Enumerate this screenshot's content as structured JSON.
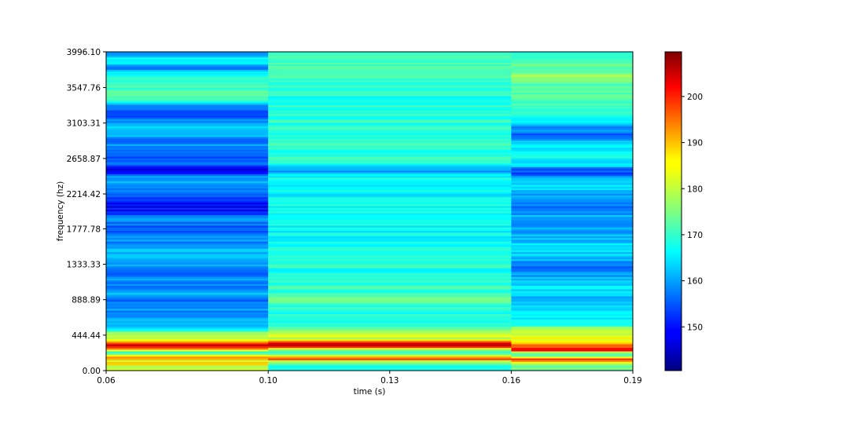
{
  "chart_data": {
    "type": "heatmap",
    "title": "",
    "xlabel": "time (s)",
    "ylabel": "frequency (hz)",
    "colormap": "jet",
    "x_ticks": [
      "0.06",
      "0.10",
      "0.13",
      "0.16",
      "0.19"
    ],
    "x_tick_values": [
      0.06,
      0.1,
      0.13,
      0.16,
      0.19
    ],
    "xlim": [
      0.06,
      0.19
    ],
    "y_ticks": [
      "0.00",
      "444.44",
      "888.89",
      "1333.33",
      "1777.78",
      "2214.42",
      "2658.87",
      "3103.31",
      "3547.76",
      "3996.10"
    ],
    "y_tick_values": [
      0.0,
      444.44,
      888.89,
      1333.33,
      1777.78,
      2214.42,
      2658.87,
      3103.31,
      3547.76,
      3996.1
    ],
    "ylim": [
      0,
      3996.1
    ],
    "colorbar": {
      "ticks": [
        "150",
        "160",
        "170",
        "180",
        "190",
        "200"
      ],
      "tick_values": [
        150,
        160,
        170,
        180,
        190,
        200
      ],
      "range": [
        140.5,
        209.7
      ]
    },
    "time_segments": [
      {
        "x_start": 0.06,
        "x_end": 0.1,
        "profile": [
          [
            0,
            180
          ],
          [
            40,
            176
          ],
          [
            80,
            188
          ],
          [
            120,
            182
          ],
          [
            160,
            194
          ],
          [
            200,
            178
          ],
          [
            240,
            170
          ],
          [
            280,
            196
          ],
          [
            320,
            206
          ],
          [
            360,
            192
          ],
          [
            400,
            178
          ],
          [
            440,
            182
          ],
          [
            480,
            176
          ],
          [
            520,
            164
          ],
          [
            600,
            162
          ],
          [
            700,
            160
          ],
          [
            800,
            158
          ],
          [
            880,
            156
          ],
          [
            960,
            162
          ],
          [
            1050,
            158
          ],
          [
            1150,
            160
          ],
          [
            1200,
            152
          ],
          [
            1300,
            158
          ],
          [
            1400,
            163
          ],
          [
            1500,
            161
          ],
          [
            1600,
            159
          ],
          [
            1700,
            158
          ],
          [
            1790,
            154
          ],
          [
            1900,
            160
          ],
          [
            2000,
            150
          ],
          [
            2100,
            148
          ],
          [
            2200,
            158
          ],
          [
            2300,
            160
          ],
          [
            2400,
            162
          ],
          [
            2520,
            148
          ],
          [
            2600,
            156
          ],
          [
            2700,
            154
          ],
          [
            2800,
            160
          ],
          [
            2900,
            158
          ],
          [
            3000,
            163
          ],
          [
            3100,
            162
          ],
          [
            3200,
            152
          ],
          [
            3300,
            156
          ],
          [
            3400,
            170
          ],
          [
            3500,
            172
          ],
          [
            3600,
            170
          ],
          [
            3700,
            168
          ],
          [
            3800,
            158
          ],
          [
            3900,
            168
          ],
          [
            3996.1,
            158
          ]
        ]
      },
      {
        "x_start": 0.1,
        "x_end": 0.16,
        "profile": [
          [
            0,
            170
          ],
          [
            60,
            168
          ],
          [
            120,
            178
          ],
          [
            150,
            200
          ],
          [
            200,
            172
          ],
          [
            250,
            168
          ],
          [
            300,
            198
          ],
          [
            320,
            208
          ],
          [
            350,
            204
          ],
          [
            400,
            176
          ],
          [
            440,
            186
          ],
          [
            460,
            178
          ],
          [
            520,
            172
          ],
          [
            600,
            170
          ],
          [
            700,
            168
          ],
          [
            800,
            170
          ],
          [
            900,
            172
          ],
          [
            1000,
            170
          ],
          [
            1200,
            168
          ],
          [
            1400,
            170
          ],
          [
            1600,
            168
          ],
          [
            1800,
            166
          ],
          [
            2000,
            168
          ],
          [
            2200,
            166
          ],
          [
            2400,
            168
          ],
          [
            2500,
            160
          ],
          [
            2600,
            168
          ],
          [
            2800,
            170
          ],
          [
            3000,
            168
          ],
          [
            3200,
            170
          ],
          [
            3400,
            168
          ],
          [
            3600,
            170
          ],
          [
            3800,
            172
          ],
          [
            3996.1,
            170
          ]
        ]
      },
      {
        "x_start": 0.16,
        "x_end": 0.19,
        "profile": [
          [
            0,
            174
          ],
          [
            60,
            172
          ],
          [
            100,
            180
          ],
          [
            140,
            198
          ],
          [
            180,
            176
          ],
          [
            220,
            172
          ],
          [
            260,
            202
          ],
          [
            300,
            196
          ],
          [
            340,
            190
          ],
          [
            380,
            184
          ],
          [
            420,
            182
          ],
          [
            460,
            180
          ],
          [
            520,
            178
          ],
          [
            560,
            172
          ],
          [
            600,
            166
          ],
          [
            700,
            164
          ],
          [
            800,
            166
          ],
          [
            880,
            160
          ],
          [
            960,
            164
          ],
          [
            1050,
            166
          ],
          [
            1150,
            162
          ],
          [
            1300,
            156
          ],
          [
            1400,
            162
          ],
          [
            1500,
            164
          ],
          [
            1600,
            163
          ],
          [
            1700,
            161
          ],
          [
            1800,
            160
          ],
          [
            1900,
            162
          ],
          [
            2000,
            158
          ],
          [
            2100,
            157
          ],
          [
            2200,
            160
          ],
          [
            2300,
            164
          ],
          [
            2400,
            163
          ],
          [
            2480,
            152
          ],
          [
            2600,
            166
          ],
          [
            2700,
            168
          ],
          [
            2800,
            166
          ],
          [
            2950,
            156
          ],
          [
            3050,
            160
          ],
          [
            3150,
            166
          ],
          [
            3300,
            170
          ],
          [
            3400,
            172
          ],
          [
            3500,
            173
          ],
          [
            3600,
            172
          ],
          [
            3700,
            176
          ],
          [
            3800,
            174
          ],
          [
            3900,
            170
          ],
          [
            3996.1,
            168
          ]
        ]
      }
    ]
  }
}
